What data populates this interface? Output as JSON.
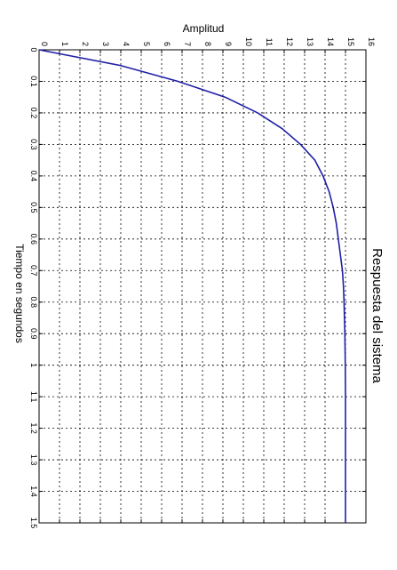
{
  "chart_data": {
    "type": "line",
    "title": "Respuesta del sistema",
    "xlabel": "Tiempo en segundos",
    "ylabel": "Amplitud",
    "orientation": "rotated-90-clockwise",
    "xlim": [
      0,
      1.5
    ],
    "ylim": [
      0,
      16
    ],
    "xticks": [
      "0",
      "0.1",
      "0.2",
      "0.3",
      "0.4",
      "0.5",
      "0.6",
      "0.7",
      "0.8",
      "0.9",
      "1",
      "1.1",
      "1.2",
      "1.3",
      "1.4",
      "1.5"
    ],
    "yticks": [
      "0",
      "1",
      "2",
      "3",
      "4",
      "5",
      "6",
      "7",
      "8",
      "9",
      "10",
      "11",
      "12",
      "13",
      "14",
      "15",
      "16"
    ],
    "grid": true,
    "line_color": "#1f1fa8",
    "series": [
      {
        "x": [
          0,
          0.05,
          0.1,
          0.15,
          0.2,
          0.25,
          0.3,
          0.35,
          0.4,
          0.45,
          0.5,
          0.55,
          0.6,
          0.65,
          0.7,
          0.75,
          0.8,
          0.85,
          0.9,
          0.95,
          1.0,
          1.1,
          1.2,
          1.3,
          1.4,
          1.5
        ],
        "y": [
          0,
          4.0,
          6.8,
          9.1,
          10.7,
          11.9,
          12.8,
          13.5,
          13.9,
          14.2,
          14.4,
          14.55,
          14.65,
          14.75,
          14.85,
          14.9,
          14.93,
          14.95,
          14.97,
          14.98,
          14.99,
          15.0,
          15.0,
          15.0,
          15.0,
          15.0
        ]
      }
    ]
  }
}
